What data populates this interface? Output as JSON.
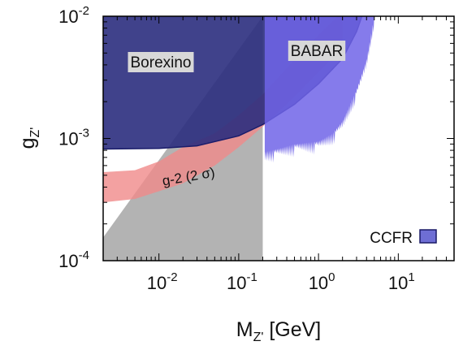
{
  "chart_data": {
    "type": "area",
    "title": "",
    "xlabel": "M",
    "xlabel_sub": "Z'",
    "xlabel_unit": "[GeV]",
    "ylabel": "g",
    "ylabel_sub": "Z'",
    "xscale": "log",
    "yscale": "log",
    "xlim": [
      0.002,
      50
    ],
    "ylim": [
      0.0001,
      0.01
    ],
    "grid": false,
    "x_ticks": [
      {
        "value": 0.01,
        "base": "10",
        "exp": "-2"
      },
      {
        "value": 0.1,
        "base": "10",
        "exp": "-1"
      },
      {
        "value": 1,
        "base": "10",
        "exp": "0"
      },
      {
        "value": 10,
        "base": "10",
        "exp": "1"
      }
    ],
    "y_ticks": [
      {
        "value": 0.0001,
        "base": "10",
        "exp": "-4"
      },
      {
        "value": 0.001,
        "base": "10",
        "exp": "-3"
      },
      {
        "value": 0.01,
        "base": "10",
        "exp": "-2"
      }
    ],
    "regions": [
      {
        "name": "g-2 (2σ)",
        "label": "g-2 (2 σ)",
        "color": "#f08a8a",
        "opacity": 0.8,
        "upper": [
          [
            0.002,
            0.00053
          ],
          [
            0.005,
            0.00055
          ],
          [
            0.01,
            0.00065
          ],
          [
            0.02,
            0.00085
          ],
          [
            0.05,
            0.0011
          ],
          [
            0.1,
            0.00155
          ],
          [
            0.2,
            0.0023
          ],
          [
            0.5,
            0.0044
          ],
          [
            1,
            0.007
          ],
          [
            2,
            0.011
          ]
        ],
        "lower": [
          [
            2,
            0.0055
          ],
          [
            1,
            0.0035
          ],
          [
            0.5,
            0.0022
          ],
          [
            0.2,
            0.00125
          ],
          [
            0.1,
            0.00085
          ],
          [
            0.05,
            0.0006
          ],
          [
            0.02,
            0.00043
          ],
          [
            0.01,
            0.00037
          ],
          [
            0.005,
            0.00032
          ],
          [
            0.002,
            0.0003
          ]
        ]
      },
      {
        "name": "Borexino",
        "label": "Borexino",
        "color": "#2b2e7e",
        "opacity": 0.9,
        "boundary": [
          [
            0.002,
            0.00082
          ],
          [
            0.01,
            0.00083
          ],
          [
            0.03,
            0.00087
          ],
          [
            0.1,
            0.00105
          ],
          [
            0.2,
            0.0013
          ],
          [
            0.5,
            0.0019
          ],
          [
            1,
            0.0028
          ],
          [
            2,
            0.0045
          ],
          [
            3,
            0.0075
          ],
          [
            3.5,
            0.01
          ]
        ]
      },
      {
        "name": "BABAR",
        "label": "BABAR",
        "color": "#7064e8",
        "opacity": 0.85,
        "xmin": 0.212,
        "edge": [
          [
            0.212,
            0.00078
          ],
          [
            0.3,
            0.00082
          ],
          [
            0.5,
            0.0009
          ],
          [
            1,
            0.00095
          ],
          [
            1.5,
            0.0011
          ],
          [
            2,
            0.0014
          ],
          [
            3,
            0.0025
          ],
          [
            4,
            0.0045
          ],
          [
            5,
            0.01
          ]
        ]
      },
      {
        "name": "Excluded (grey)",
        "label": "",
        "color": "#9a9a9a",
        "opacity": 0.75,
        "diagonal": [
          [
            0.002,
            0.000155
          ],
          [
            0.2,
            0.01
          ]
        ]
      }
    ],
    "legend": [
      {
        "label": "CCFR",
        "color": "#6e6ed4",
        "position": "bottom-right"
      }
    ]
  }
}
